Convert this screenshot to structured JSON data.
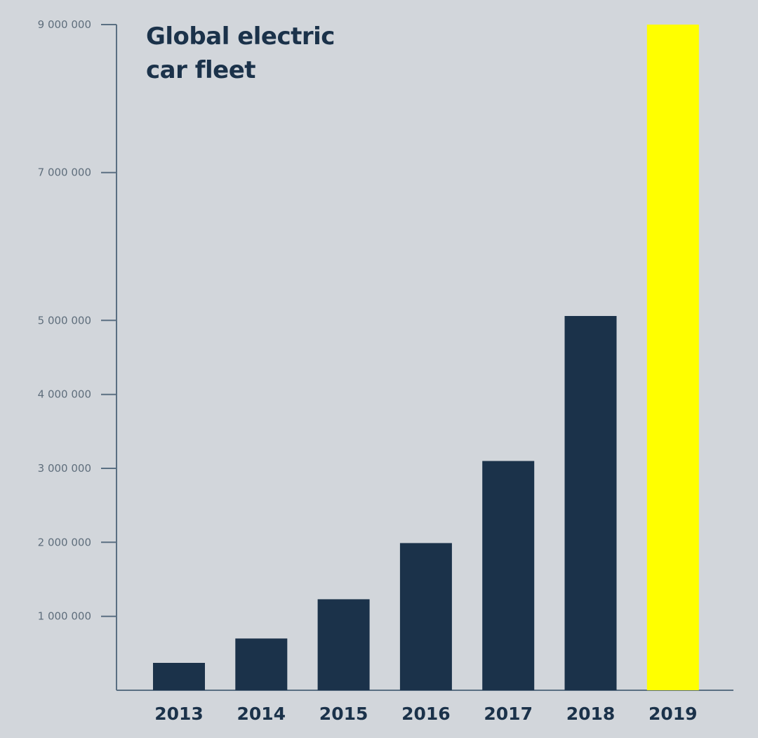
{
  "chart_data": {
    "type": "bar",
    "title_lines": [
      "Global electric",
      "car fleet"
    ],
    "categories": [
      "2013",
      "2014",
      "2015",
      "2016",
      "2017",
      "2018",
      "2019"
    ],
    "values": [
      370000,
      700000,
      1230000,
      1990000,
      3100000,
      5060000,
      9000000
    ],
    "y_ticks": [
      {
        "value": 1000000,
        "label": "1 000 000"
      },
      {
        "value": 2000000,
        "label": "2 000 000"
      },
      {
        "value": 3000000,
        "label": "3 000 000"
      },
      {
        "value": 4000000,
        "label": "4 000 000"
      },
      {
        "value": 5000000,
        "label": "5 000 000"
      },
      {
        "value": 7000000,
        "label": "7 000 000"
      },
      {
        "value": 9000000,
        "label": "9 000 000"
      }
    ],
    "ylim": [
      0,
      9000000
    ],
    "xlabel": "",
    "ylabel": "",
    "grid": false,
    "colors": {
      "bar": "#1b324a",
      "highlight": "#ffff00",
      "axis": "#5a6f82",
      "tick_label": "#5f6e7c",
      "category_label": "#1b324a",
      "background": "#d2d6db"
    },
    "highlight_category": "2019"
  }
}
